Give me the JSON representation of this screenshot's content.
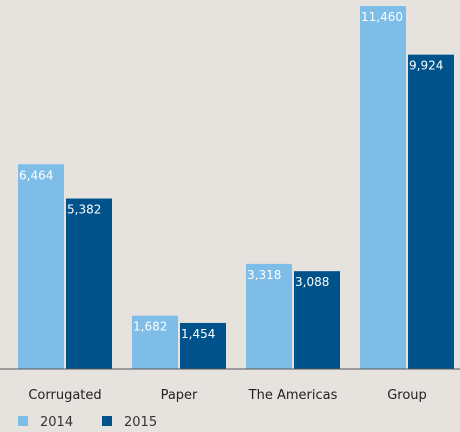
{
  "chart_data": {
    "type": "bar",
    "categories": [
      "Corrugated",
      "Paper",
      "The Americas",
      "Group"
    ],
    "series": [
      {
        "name": "2014",
        "color": "#7dbde8",
        "values": [
          6464,
          1682,
          3318,
          11460
        ],
        "labels": [
          "6,464",
          "1,682",
          "3,318",
          "11,460"
        ]
      },
      {
        "name": "2015",
        "color": "#00528a",
        "values": [
          5382,
          1454,
          3088,
          9924
        ],
        "labels": [
          "5,382",
          "1,454",
          "3,088",
          "9,924"
        ]
      }
    ],
    "title": "",
    "xlabel": "",
    "ylabel": "",
    "ylim": [
      0,
      11460
    ],
    "grid": false,
    "legend": "bottom-left",
    "axis_color": "#555555"
  }
}
